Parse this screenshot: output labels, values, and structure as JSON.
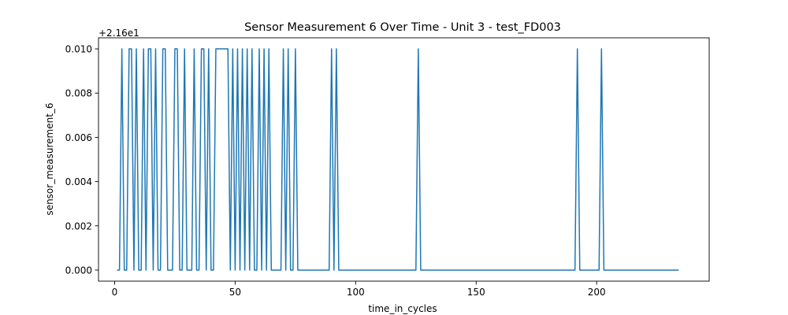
{
  "chart_data": {
    "type": "line",
    "title": "Sensor Measurement 6 Over Time - Unit 3 - test_FD003",
    "xlabel": "time_in_cycles",
    "ylabel": "sensor_measurement_6",
    "y_offset_label": "+2.16e1",
    "xlim": [
      -6.7,
      246.7
    ],
    "ylim": [
      -0.0005,
      0.0105
    ],
    "x_ticks": [
      0,
      50,
      100,
      150,
      200
    ],
    "x_tick_labels": [
      "0",
      "50",
      "100",
      "150",
      "200"
    ],
    "y_ticks": [
      0.0,
      0.002,
      0.004,
      0.006,
      0.008,
      0.01
    ],
    "y_tick_labels": [
      "0.000",
      "0.002",
      "0.004",
      "0.006",
      "0.008",
      "0.010"
    ],
    "grid": false,
    "line_color": "#1f77b4",
    "series": [
      {
        "x_start": 1,
        "x_end": 234,
        "baseline": 0.0,
        "high": 0.01,
        "high_points": [
          3,
          6,
          7,
          9,
          12,
          14,
          15,
          17,
          20,
          21,
          25,
          26,
          29,
          33,
          36,
          37,
          39,
          42,
          43,
          44,
          45,
          46,
          47,
          49,
          51,
          53,
          55,
          57,
          60,
          62,
          64,
          70,
          72,
          75,
          90,
          92,
          126,
          192,
          202
        ]
      }
    ]
  }
}
